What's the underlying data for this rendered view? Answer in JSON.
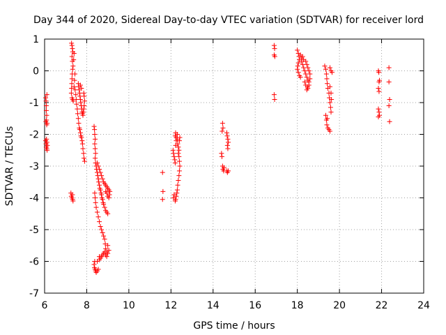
{
  "chart_data": {
    "type": "scatter",
    "title": "Day 344 of 2020, Sidereal Day-to-day VTEC variation (SDTVAR) for receiver lord",
    "xlabel": "GPS time / hours",
    "ylabel": "SDTVAR / TECUs",
    "xlim": [
      6,
      24
    ],
    "ylim": [
      -7,
      1
    ],
    "xticks": [
      "6",
      "8",
      "10",
      "12",
      "14",
      "16",
      "18",
      "20",
      "22",
      "24"
    ],
    "yticks": [
      "1",
      "0",
      "-1",
      "-2",
      "-3",
      "-4",
      "-5",
      "-6",
      "-7"
    ],
    "grid": true,
    "marker": "+",
    "color": "#ff0000",
    "series": [
      {
        "name": "SDTVAR",
        "points": [
          [
            6.05,
            -0.85
          ],
          [
            6.07,
            -0.95
          ],
          [
            6.08,
            -1.1
          ],
          [
            6.08,
            -1.25
          ],
          [
            6.1,
            -1.4
          ],
          [
            6.09,
            -1.55
          ],
          [
            6.1,
            -1.7
          ],
          [
            6.11,
            -0.75
          ],
          [
            6.06,
            -1.6
          ],
          [
            6.12,
            -1.65
          ],
          [
            6.05,
            -2.2
          ],
          [
            6.07,
            -2.3
          ],
          [
            6.08,
            -2.4
          ],
          [
            6.1,
            -2.45
          ],
          [
            6.12,
            -2.5
          ],
          [
            6.09,
            -2.15
          ],
          [
            6.11,
            -2.25
          ],
          [
            6.13,
            -2.35
          ],
          [
            7.28,
            0.87
          ],
          [
            7.3,
            0.8
          ],
          [
            7.32,
            0.7
          ],
          [
            7.34,
            0.6
          ],
          [
            7.3,
            0.45
          ],
          [
            7.32,
            0.3
          ],
          [
            7.35,
            0.15
          ],
          [
            7.33,
            0.05
          ],
          [
            7.31,
            -0.1
          ],
          [
            7.3,
            -0.25
          ],
          [
            7.29,
            -0.4
          ],
          [
            7.28,
            -0.55
          ],
          [
            7.27,
            -0.7
          ],
          [
            7.3,
            -0.85
          ],
          [
            7.33,
            -0.9
          ],
          [
            7.36,
            -0.95
          ],
          [
            7.4,
            -0.5
          ],
          [
            7.42,
            -0.3
          ],
          [
            7.44,
            -0.1
          ],
          [
            7.38,
            0.35
          ],
          [
            7.4,
            0.55
          ],
          [
            7.45,
            -0.6
          ],
          [
            7.48,
            -0.75
          ],
          [
            7.5,
            -0.9
          ],
          [
            7.52,
            -1.05
          ],
          [
            7.55,
            -1.2
          ],
          [
            7.57,
            -1.35
          ],
          [
            7.6,
            -1.5
          ],
          [
            7.62,
            -1.65
          ],
          [
            7.65,
            -1.8
          ],
          [
            7.67,
            -1.85
          ],
          [
            7.7,
            -1.95
          ],
          [
            7.72,
            -2.05
          ],
          [
            7.75,
            -2.1
          ],
          [
            7.78,
            -2.2
          ],
          [
            7.8,
            -2.3
          ],
          [
            7.82,
            -2.45
          ],
          [
            7.85,
            -2.6
          ],
          [
            7.87,
            -2.75
          ],
          [
            7.9,
            -2.85
          ],
          [
            7.6,
            -0.4
          ],
          [
            7.62,
            -0.5
          ],
          [
            7.64,
            -0.6
          ],
          [
            7.66,
            -0.7
          ],
          [
            7.68,
            -0.8
          ],
          [
            7.7,
            -0.9
          ],
          [
            7.72,
            -1.0
          ],
          [
            7.74,
            -1.1
          ],
          [
            7.76,
            -1.2
          ],
          [
            7.78,
            -1.3
          ],
          [
            7.8,
            -1.35
          ],
          [
            7.82,
            -1.4
          ],
          [
            7.84,
            -1.3
          ],
          [
            7.86,
            -1.2
          ],
          [
            7.88,
            -1.1
          ],
          [
            7.9,
            -0.95
          ],
          [
            7.88,
            -0.8
          ],
          [
            7.86,
            -0.7
          ],
          [
            7.7,
            -0.45
          ],
          [
            7.75,
            -0.55
          ],
          [
            7.25,
            -3.85
          ],
          [
            7.27,
            -3.95
          ],
          [
            7.3,
            -4.0
          ],
          [
            7.33,
            -4.05
          ],
          [
            7.35,
            -4.1
          ],
          [
            7.32,
            -3.9
          ],
          [
            8.35,
            -1.75
          ],
          [
            8.37,
            -1.85
          ],
          [
            8.38,
            -2.0
          ],
          [
            8.4,
            -2.15
          ],
          [
            8.38,
            -2.3
          ],
          [
            8.4,
            -2.45
          ],
          [
            8.42,
            -2.6
          ],
          [
            8.4,
            -2.75
          ],
          [
            8.42,
            -2.9
          ],
          [
            8.45,
            -3.0
          ],
          [
            8.47,
            -3.1
          ],
          [
            8.5,
            -3.2
          ],
          [
            8.52,
            -3.3
          ],
          [
            8.55,
            -3.4
          ],
          [
            8.57,
            -3.5
          ],
          [
            8.6,
            -3.6
          ],
          [
            8.62,
            -3.7
          ],
          [
            8.65,
            -3.75
          ],
          [
            8.68,
            -3.85
          ],
          [
            8.7,
            -3.9
          ],
          [
            8.72,
            -4.0
          ],
          [
            8.75,
            -4.05
          ],
          [
            8.78,
            -4.15
          ],
          [
            8.8,
            -4.2
          ],
          [
            8.85,
            -4.3
          ],
          [
            8.9,
            -4.4
          ],
          [
            8.95,
            -4.45
          ],
          [
            9.0,
            -4.5
          ],
          [
            8.5,
            -2.9
          ],
          [
            8.55,
            -3.0
          ],
          [
            8.6,
            -3.1
          ],
          [
            8.65,
            -3.2
          ],
          [
            8.7,
            -3.3
          ],
          [
            8.75,
            -3.4
          ],
          [
            8.8,
            -3.5
          ],
          [
            8.85,
            -3.55
          ],
          [
            8.9,
            -3.6
          ],
          [
            8.95,
            -3.65
          ],
          [
            9.0,
            -3.7
          ],
          [
            9.05,
            -3.75
          ],
          [
            9.1,
            -3.8
          ],
          [
            9.08,
            -3.9
          ],
          [
            9.05,
            -4.0
          ],
          [
            9.0,
            -3.95
          ],
          [
            8.95,
            -3.85
          ],
          [
            8.9,
            -3.8
          ],
          [
            8.38,
            -3.85
          ],
          [
            8.4,
            -4.0
          ],
          [
            8.42,
            -4.15
          ],
          [
            8.45,
            -4.3
          ],
          [
            8.5,
            -4.45
          ],
          [
            8.55,
            -4.6
          ],
          [
            8.6,
            -4.75
          ],
          [
            8.65,
            -4.9
          ],
          [
            8.7,
            -5.0
          ],
          [
            8.75,
            -5.1
          ],
          [
            8.8,
            -5.2
          ],
          [
            8.85,
            -5.3
          ],
          [
            8.88,
            -5.45
          ],
          [
            8.9,
            -5.6
          ],
          [
            8.95,
            -5.7
          ],
          [
            9.0,
            -5.75
          ],
          [
            9.05,
            -5.65
          ],
          [
            9.0,
            -5.5
          ],
          [
            8.35,
            -6.1
          ],
          [
            8.37,
            -6.2
          ],
          [
            8.4,
            -6.25
          ],
          [
            8.42,
            -6.3
          ],
          [
            8.45,
            -6.35
          ],
          [
            8.5,
            -6.3
          ],
          [
            8.55,
            -6.25
          ],
          [
            8.38,
            -6.0
          ],
          [
            8.5,
            -6.0
          ],
          [
            8.6,
            -5.95
          ],
          [
            8.65,
            -5.9
          ],
          [
            8.7,
            -5.85
          ],
          [
            8.75,
            -5.8
          ],
          [
            8.8,
            -5.75
          ],
          [
            8.85,
            -5.7
          ],
          [
            8.9,
            -5.8
          ],
          [
            8.95,
            -5.85
          ],
          [
            8.6,
            -5.85
          ],
          [
            11.6,
            -3.2
          ],
          [
            11.62,
            -3.8
          ],
          [
            11.6,
            -4.05
          ],
          [
            12.1,
            -2.5
          ],
          [
            12.12,
            -2.6
          ],
          [
            12.15,
            -2.7
          ],
          [
            12.18,
            -2.8
          ],
          [
            12.2,
            -2.9
          ],
          [
            12.22,
            -2.35
          ],
          [
            12.25,
            -2.2
          ],
          [
            12.2,
            -2.05
          ],
          [
            12.22,
            -1.95
          ],
          [
            12.25,
            -2.1
          ],
          [
            12.3,
            -2.15
          ],
          [
            12.32,
            -2.3
          ],
          [
            12.35,
            -2.4
          ],
          [
            12.38,
            -2.5
          ],
          [
            12.3,
            -2.0
          ],
          [
            12.4,
            -2.2
          ],
          [
            12.42,
            -2.1
          ],
          [
            12.35,
            -2.6
          ],
          [
            12.38,
            -2.7
          ],
          [
            12.4,
            -2.85
          ],
          [
            12.42,
            -3.0
          ],
          [
            12.4,
            -3.15
          ],
          [
            12.38,
            -3.3
          ],
          [
            12.35,
            -3.45
          ],
          [
            12.32,
            -3.6
          ],
          [
            12.3,
            -3.75
          ],
          [
            12.28,
            -3.85
          ],
          [
            12.25,
            -3.95
          ],
          [
            12.22,
            -4.05
          ],
          [
            12.2,
            -4.1
          ],
          [
            12.15,
            -3.9
          ],
          [
            12.12,
            -4.0
          ],
          [
            14.45,
            -1.65
          ],
          [
            14.47,
            -1.8
          ],
          [
            14.43,
            -1.9
          ],
          [
            14.4,
            -2.6
          ],
          [
            14.42,
            -2.7
          ],
          [
            14.45,
            -3.0
          ],
          [
            14.47,
            -3.1
          ],
          [
            14.5,
            -3.15
          ],
          [
            14.52,
            -3.05
          ],
          [
            14.65,
            -1.95
          ],
          [
            14.67,
            -2.05
          ],
          [
            14.7,
            -2.15
          ],
          [
            14.72,
            -2.25
          ],
          [
            14.68,
            -2.35
          ],
          [
            14.7,
            -2.45
          ],
          [
            14.65,
            -3.15
          ],
          [
            14.68,
            -3.2
          ],
          [
            14.72,
            -3.15
          ],
          [
            16.9,
            0.8
          ],
          [
            16.92,
            0.7
          ],
          [
            16.9,
            0.5
          ],
          [
            16.93,
            0.45
          ],
          [
            16.9,
            -0.75
          ],
          [
            16.92,
            -0.9
          ],
          [
            18.0,
            0.65
          ],
          [
            18.05,
            0.55
          ],
          [
            18.08,
            0.45
          ],
          [
            18.1,
            0.35
          ],
          [
            18.05,
            0.25
          ],
          [
            18.02,
            0.15
          ],
          [
            18.0,
            0.05
          ],
          [
            18.05,
            -0.05
          ],
          [
            18.1,
            -0.15
          ],
          [
            18.15,
            -0.2
          ],
          [
            18.2,
            0.3
          ],
          [
            18.25,
            0.2
          ],
          [
            18.3,
            0.1
          ],
          [
            18.35,
            0.0
          ],
          [
            18.4,
            -0.1
          ],
          [
            18.45,
            -0.2
          ],
          [
            18.5,
            -0.3
          ],
          [
            18.55,
            -0.45
          ],
          [
            18.5,
            -0.55
          ],
          [
            18.45,
            -0.6
          ],
          [
            18.4,
            -0.45
          ],
          [
            18.35,
            -0.35
          ],
          [
            18.15,
            0.5
          ],
          [
            18.2,
            0.4
          ],
          [
            18.25,
            0.45
          ],
          [
            18.3,
            0.35
          ],
          [
            18.4,
            0.3
          ],
          [
            18.45,
            0.2
          ],
          [
            18.5,
            0.1
          ],
          [
            18.55,
            0.0
          ],
          [
            18.6,
            -0.1
          ],
          [
            18.6,
            -0.25
          ],
          [
            18.55,
            -0.35
          ],
          [
            18.48,
            -0.5
          ],
          [
            19.3,
            0.15
          ],
          [
            19.35,
            0.05
          ],
          [
            19.38,
            -0.1
          ],
          [
            19.4,
            -0.25
          ],
          [
            19.42,
            -0.4
          ],
          [
            19.45,
            -0.55
          ],
          [
            19.5,
            -0.7
          ],
          [
            19.52,
            -0.85
          ],
          [
            19.55,
            -1.0
          ],
          [
            19.58,
            -1.15
          ],
          [
            19.6,
            -1.3
          ],
          [
            19.55,
            0.1
          ],
          [
            19.6,
            0.0
          ],
          [
            19.65,
            -0.05
          ],
          [
            19.55,
            -0.5
          ],
          [
            19.6,
            -0.7
          ],
          [
            19.62,
            -0.9
          ],
          [
            19.35,
            -1.4
          ],
          [
            19.38,
            -1.55
          ],
          [
            19.4,
            -1.7
          ],
          [
            19.45,
            -1.8
          ],
          [
            19.5,
            -1.85
          ],
          [
            19.55,
            -1.9
          ],
          [
            19.42,
            -1.5
          ],
          [
            21.85,
            0.0
          ],
          [
            21.87,
            -0.05
          ],
          [
            21.9,
            -0.3
          ],
          [
            21.88,
            -0.35
          ],
          [
            21.85,
            -0.55
          ],
          [
            21.88,
            -0.65
          ],
          [
            21.85,
            -1.2
          ],
          [
            21.88,
            -1.3
          ],
          [
            21.85,
            -1.45
          ],
          [
            21.9,
            -1.4
          ],
          [
            22.35,
            0.1
          ],
          [
            22.35,
            -0.35
          ],
          [
            22.38,
            -0.9
          ],
          [
            22.35,
            -1.1
          ],
          [
            22.38,
            -1.6
          ]
        ]
      }
    ]
  }
}
